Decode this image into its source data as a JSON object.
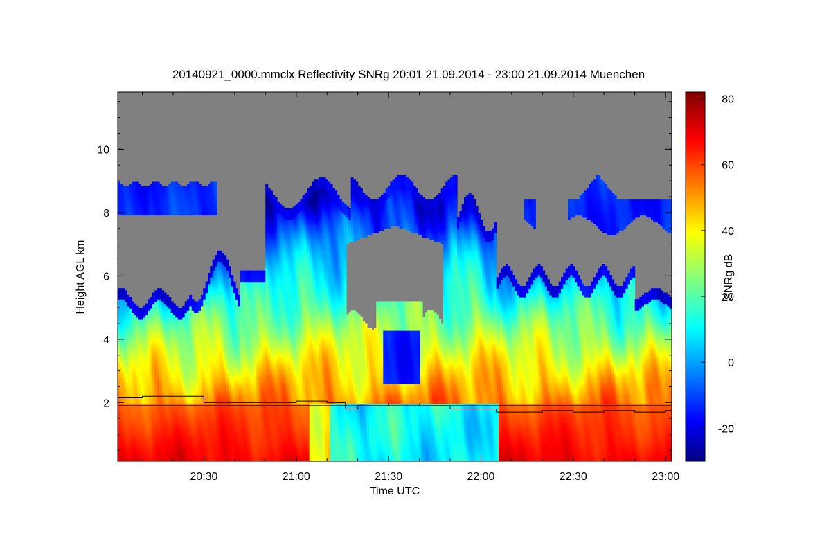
{
  "chart_data": {
    "type": "heatmap",
    "title": "20140921_0000.mmclx Reflectivity SNRg   20:01 21.09.2014 - 23:00 21.09.2014 Muenchen",
    "xlabel": "Time UTC",
    "ylabel": "Height AGL km",
    "colorbar_label": "SNRg dB",
    "x_ticks": [
      "20:30",
      "21:00",
      "21:30",
      "22:00",
      "22:30",
      "23:00"
    ],
    "x_tick_minutes": [
      30,
      60,
      90,
      120,
      150,
      180
    ],
    "xlim_minutes": [
      2,
      182
    ],
    "y_ticks": [
      2,
      4,
      6,
      8,
      10
    ],
    "ylim": [
      0.15,
      11.8
    ],
    "colorbar_ticks": [
      -20,
      0,
      20,
      40,
      60,
      80
    ],
    "colorbar_range": [
      -30,
      82
    ],
    "colormap": "jet",
    "background_color": "#808080",
    "echo_regions": [
      {
        "name": "upper cirrus left",
        "t": [
          2,
          33
        ],
        "h": [
          8.0,
          8.8
        ],
        "db": -12
      },
      {
        "name": "main cloud",
        "t": [
          2,
          182
        ],
        "h": [
          0.15,
          9.2
        ],
        "db": 10
      },
      {
        "name": "upper cloud right",
        "t": [
          134,
          182
        ],
        "h": [
          7.6,
          9.3
        ],
        "db": -10
      },
      {
        "name": "clear gap",
        "t": [
          77,
          110
        ],
        "h": [
          4.5,
          7.6
        ],
        "db": null
      }
    ],
    "boundary_line": {
      "color": "#000000",
      "t": [
        2,
        10,
        20,
        25,
        30,
        35,
        45,
        55,
        60,
        65,
        70,
        76,
        80,
        90,
        100,
        110,
        120,
        125,
        130,
        140,
        150,
        160,
        170,
        180,
        182
      ],
      "h": [
        2.15,
        2.2,
        2.2,
        2.2,
        2.0,
        2.0,
        2.0,
        2.0,
        2.05,
        2.05,
        2.0,
        1.8,
        1.9,
        1.95,
        1.9,
        1.8,
        1.8,
        1.7,
        1.7,
        1.75,
        1.7,
        1.75,
        1.7,
        1.75,
        1.75
      ]
    }
  }
}
